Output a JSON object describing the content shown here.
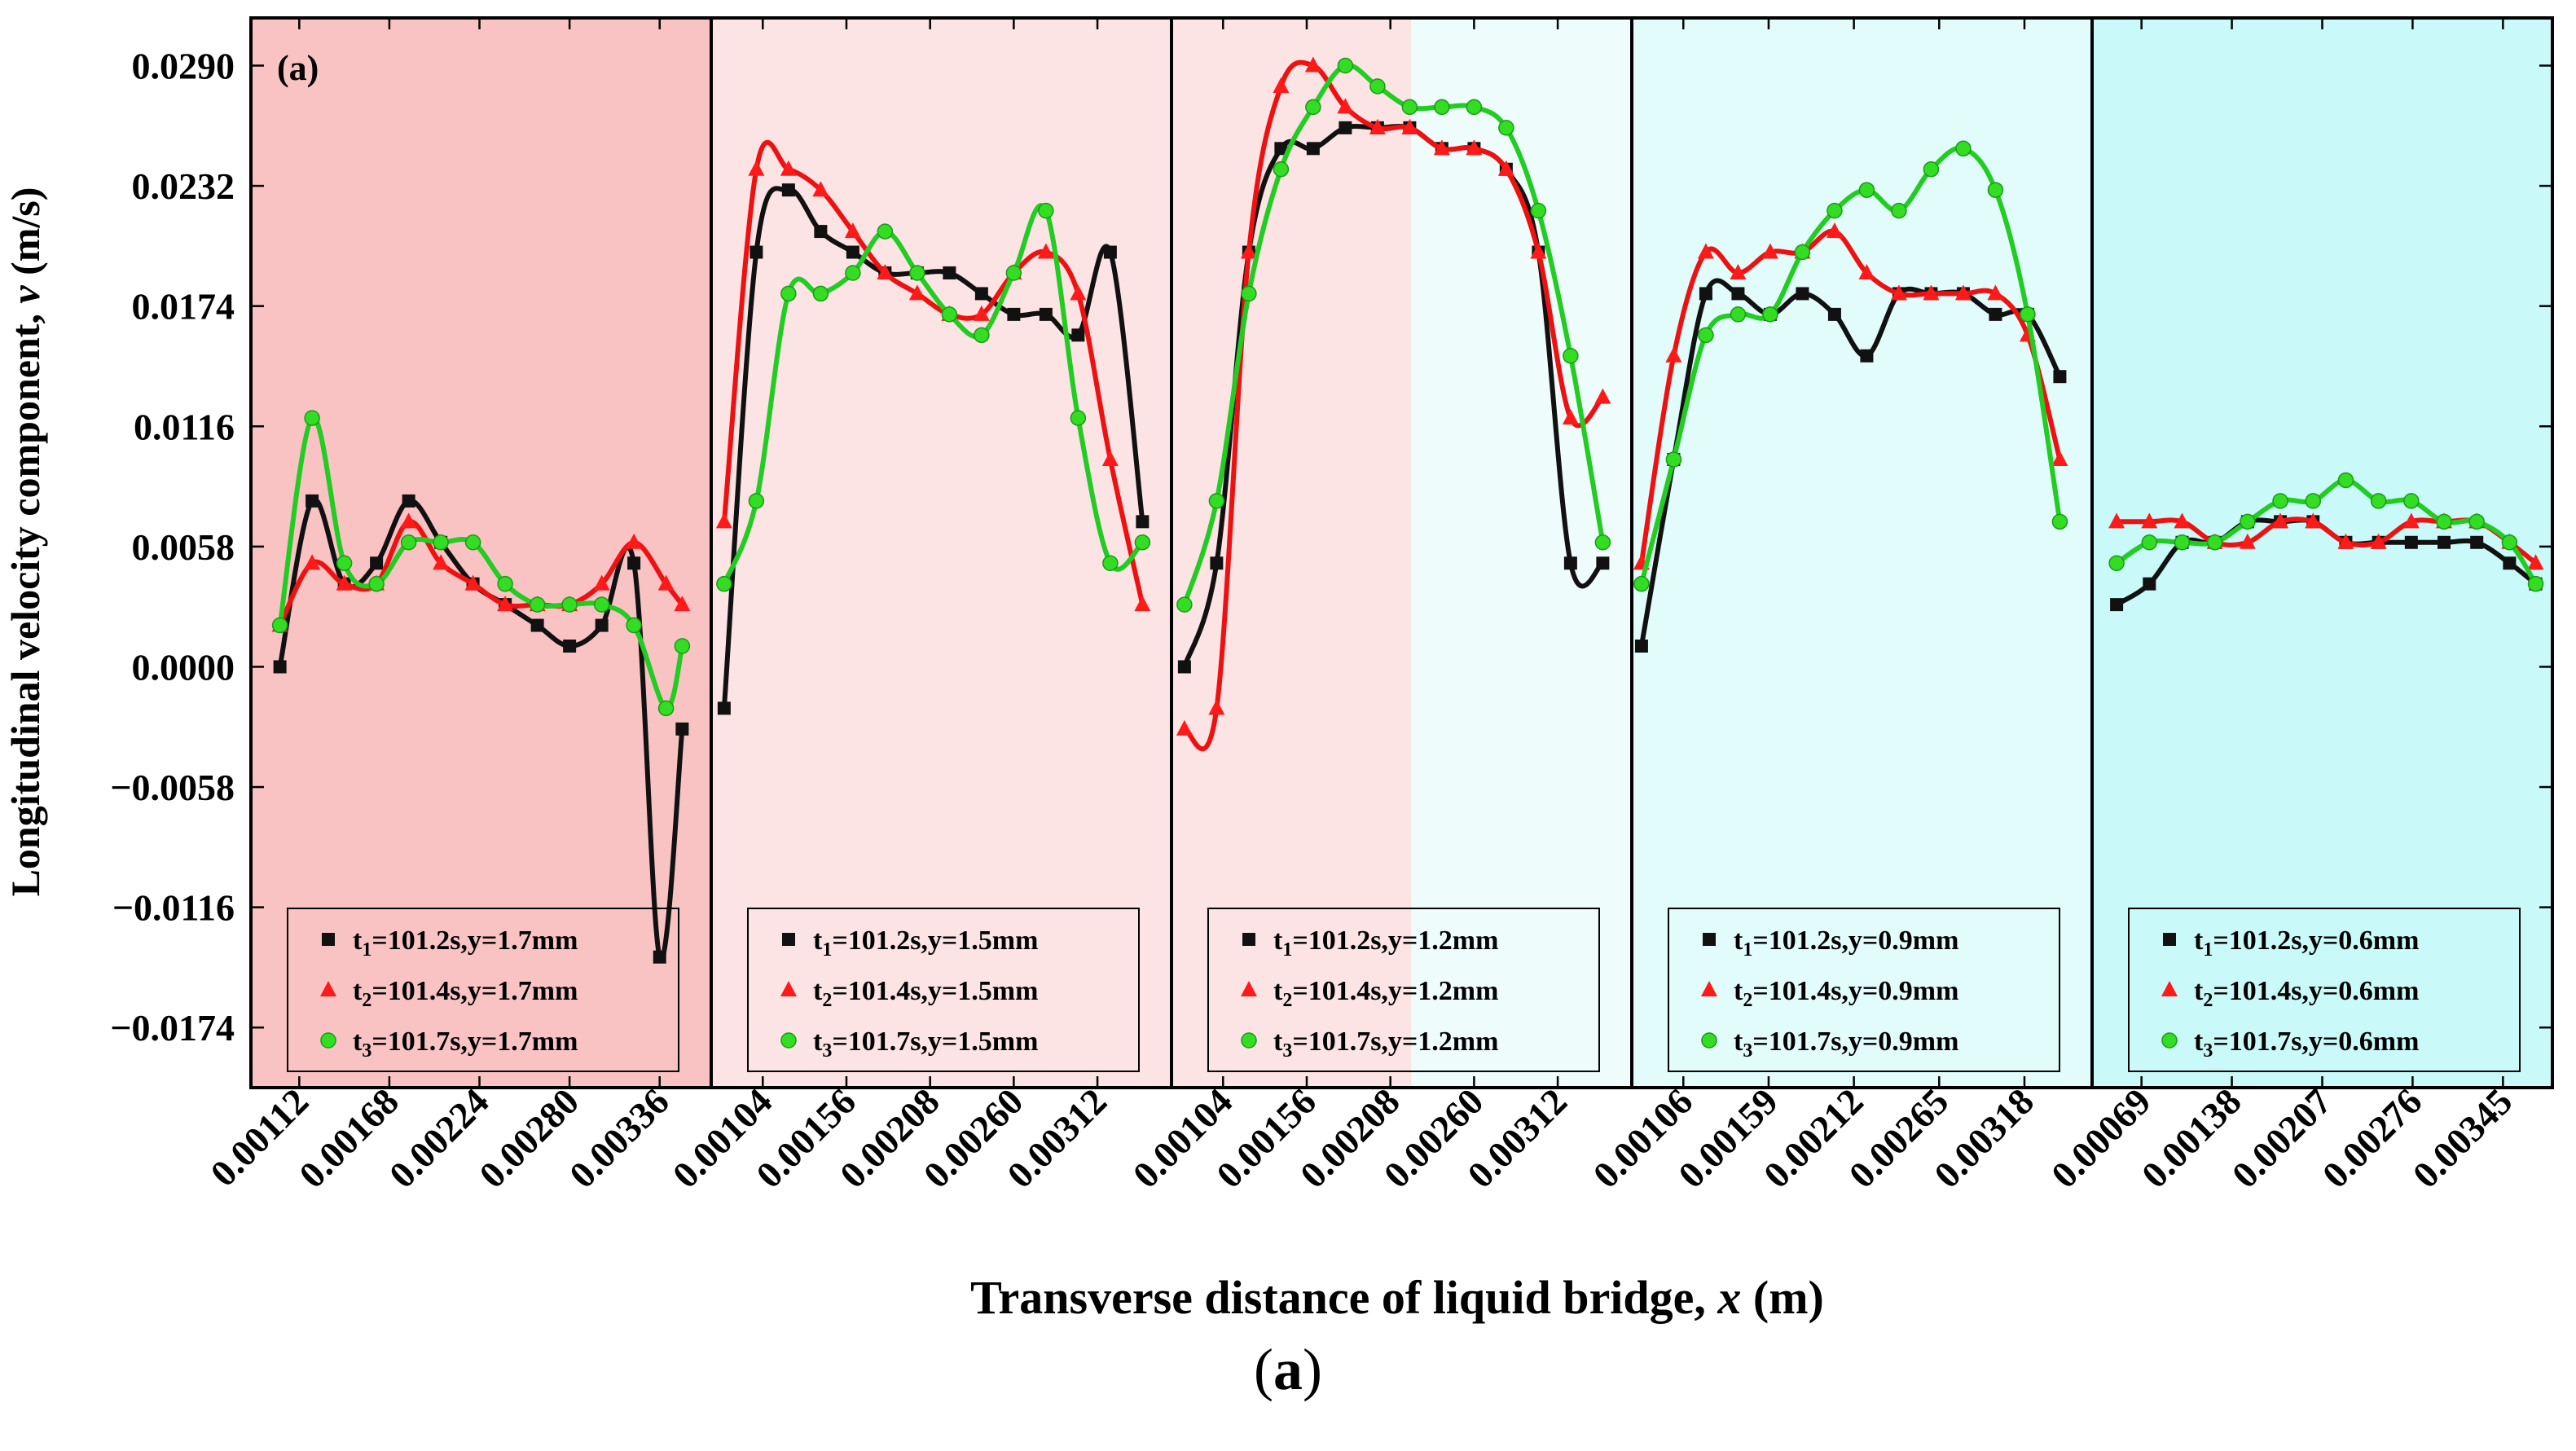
{
  "chart_data": {
    "type": "scatter",
    "panel_label": "(a)",
    "ylabel_text": "Longitudinal velocity component, ",
    "ylabel_var": "v",
    "ylabel_unit": " (m/s)",
    "xlabel_text": "Transverse distance of liquid bridge, ",
    "xlabel_var": "x",
    "xlabel_unit": " (m)",
    "ylim": [
      -0.0203,
      0.0313
    ],
    "yticks": [
      "0.0290",
      "0.0232",
      "0.0174",
      "0.0116",
      "0.0058",
      "0.0000",
      "−0.0058",
      "−0.0116",
      "−0.0174"
    ],
    "ytick_values": [
      0.029,
      0.0232,
      0.0174,
      0.0116,
      0.0058,
      0.0,
      -0.0058,
      -0.0116,
      -0.0174
    ],
    "series_colors": [
      "#111111",
      "#ff1a1a",
      "#33dd22"
    ],
    "line_colors": [
      "#111111",
      "#ee1111",
      "#22cc22"
    ],
    "panels": [
      {
        "bg": [
          "#f9c3c3",
          "#f9c3c3"
        ],
        "xlim": [
          0.00085,
          0.00365
        ],
        "xticks": [
          "0.00112",
          "0.00168",
          "0.00224",
          "0.00280",
          "0.00336"
        ],
        "xtick_values": [
          0.00112,
          0.00168,
          0.00224,
          0.0028,
          0.00336
        ],
        "legend": [
          "101.2s,y=1.7mm",
          "101.4s,y=1.7mm",
          "101.7s,y=1.7mm"
        ],
        "series": [
          {
            "name": "t1=101.2s,y=1.7mm",
            "x": [
              0.001,
              0.0012,
              0.0014,
              0.0016,
              0.0018,
              0.002,
              0.0022,
              0.0024,
              0.0026,
              0.0028,
              0.003,
              0.0032,
              0.00336,
              0.0035
            ],
            "y": [
              0.0,
              0.008,
              0.004,
              0.005,
              0.008,
              0.006,
              0.004,
              0.003,
              0.002,
              0.001,
              0.002,
              0.005,
              -0.014,
              -0.003
            ]
          },
          {
            "name": "t2=101.4s,y=1.7mm",
            "x": [
              0.001,
              0.0012,
              0.0014,
              0.0016,
              0.0018,
              0.002,
              0.0022,
              0.0024,
              0.0026,
              0.0028,
              0.003,
              0.0032,
              0.0034,
              0.0035
            ],
            "y": [
              0.002,
              0.005,
              0.004,
              0.004,
              0.007,
              0.005,
              0.004,
              0.003,
              0.003,
              0.003,
              0.004,
              0.006,
              0.004,
              0.003
            ]
          },
          {
            "name": "t3=101.7s,y=1.7mm",
            "x": [
              0.001,
              0.0012,
              0.0014,
              0.0016,
              0.0018,
              0.002,
              0.0022,
              0.0024,
              0.0026,
              0.0028,
              0.003,
              0.0032,
              0.0034,
              0.0035
            ],
            "y": [
              0.002,
              0.012,
              0.005,
              0.004,
              0.006,
              0.006,
              0.006,
              0.004,
              0.003,
              0.003,
              0.003,
              0.002,
              -0.002,
              0.001
            ]
          }
        ]
      },
      {
        "bg": [
          "#fce4e4",
          "#fce4e4"
        ],
        "xlim": [
          0.00075,
          0.00355
        ],
        "xticks": [
          "0.00104",
          "0.00156",
          "0.00208",
          "0.00260",
          "0.00312"
        ],
        "xtick_values": [
          0.00104,
          0.00156,
          0.00208,
          0.0026,
          0.00312
        ],
        "legend": [
          "101.2s,y=1.5mm",
          "101.4s,y=1.5mm",
          "101.7s,y=1.5mm"
        ],
        "series": [
          {
            "name": "t1=101.2s,y=1.5mm",
            "x": [
              0.0008,
              0.001,
              0.0012,
              0.0014,
              0.0016,
              0.0018,
              0.002,
              0.0022,
              0.0024,
              0.0026,
              0.0028,
              0.003,
              0.0032,
              0.0034
            ],
            "y": [
              -0.002,
              0.02,
              0.023,
              0.021,
              0.02,
              0.019,
              0.019,
              0.019,
              0.018,
              0.017,
              0.017,
              0.016,
              0.02,
              0.007
            ]
          },
          {
            "name": "t2=101.4s,y=1.5mm",
            "x": [
              0.0008,
              0.001,
              0.0012,
              0.0014,
              0.0016,
              0.0018,
              0.002,
              0.0022,
              0.0024,
              0.0026,
              0.0028,
              0.003,
              0.0032,
              0.0034
            ],
            "y": [
              0.007,
              0.024,
              0.024,
              0.023,
              0.021,
              0.019,
              0.018,
              0.017,
              0.017,
              0.019,
              0.02,
              0.018,
              0.01,
              0.003
            ]
          },
          {
            "name": "t3=101.7s,y=1.5mm",
            "x": [
              0.0008,
              0.001,
              0.0012,
              0.0014,
              0.0016,
              0.0018,
              0.002,
              0.0022,
              0.0024,
              0.0026,
              0.0028,
              0.003,
              0.0032,
              0.0034
            ],
            "y": [
              0.004,
              0.008,
              0.018,
              0.018,
              0.019,
              0.021,
              0.019,
              0.017,
              0.016,
              0.019,
              0.022,
              0.012,
              0.005,
              0.006
            ]
          }
        ]
      },
      {
        "bg": [
          "#fce4e4",
          "#eefcfc"
        ],
        "split": 0.00221,
        "xlim": [
          0.00075,
          0.00355
        ],
        "xticks": [
          "0.00104",
          "0.00156",
          "0.00208",
          "0.00260",
          "0.00312"
        ],
        "xtick_values": [
          0.00104,
          0.00156,
          0.00208,
          0.0026,
          0.00312
        ],
        "legend": [
          "101.2s,y=1.2mm",
          "101.4s,y=1.2mm",
          "101.7s,y=1.2mm"
        ],
        "series": [
          {
            "name": "t1=101.2s,y=1.2mm",
            "x": [
              0.0008,
              0.001,
              0.0012,
              0.0014,
              0.0016,
              0.0018,
              0.002,
              0.0022,
              0.0024,
              0.0026,
              0.0028,
              0.003,
              0.0032,
              0.0034
            ],
            "y": [
              0.0,
              0.005,
              0.02,
              0.025,
              0.025,
              0.026,
              0.026,
              0.026,
              0.025,
              0.025,
              0.024,
              0.02,
              0.005,
              0.005
            ]
          },
          {
            "name": "t2=101.4s,y=1.2mm",
            "x": [
              0.0008,
              0.001,
              0.0012,
              0.0014,
              0.0016,
              0.0018,
              0.002,
              0.0022,
              0.0024,
              0.0026,
              0.0028,
              0.003,
              0.0032,
              0.0034
            ],
            "y": [
              -0.003,
              -0.002,
              0.02,
              0.028,
              0.029,
              0.027,
              0.026,
              0.026,
              0.025,
              0.025,
              0.024,
              0.02,
              0.012,
              0.013
            ]
          },
          {
            "name": "t3=101.7s,y=1.2mm",
            "x": [
              0.0008,
              0.001,
              0.0012,
              0.0014,
              0.0016,
              0.0018,
              0.002,
              0.0022,
              0.0024,
              0.0026,
              0.0028,
              0.003,
              0.0032,
              0.0034
            ],
            "y": [
              0.003,
              0.008,
              0.018,
              0.024,
              0.027,
              0.029,
              0.028,
              0.027,
              0.027,
              0.027,
              0.026,
              0.022,
              0.015,
              0.006
            ]
          }
        ]
      },
      {
        "bg": [
          "#e2fcfc",
          "#e2fcfc"
        ],
        "xlim": [
          0.00077,
          0.00357
        ],
        "xticks": [
          "0.00106",
          "0.00159",
          "0.00212",
          "0.00265",
          "0.00318"
        ],
        "xtick_values": [
          0.00106,
          0.00159,
          0.00212,
          0.00265,
          0.00318
        ],
        "legend": [
          "101.2s,y=0.9mm",
          "101.4s,y=0.9mm",
          "101.7s,y=0.9mm"
        ],
        "series": [
          {
            "name": "t1=101.2s,y=0.9mm",
            "x": [
              0.0008,
              0.001,
              0.0012,
              0.0014,
              0.0016,
              0.0018,
              0.002,
              0.0022,
              0.0024,
              0.0026,
              0.0028,
              0.003,
              0.0032,
              0.0034
            ],
            "y": [
              0.001,
              0.01,
              0.018,
              0.018,
              0.017,
              0.018,
              0.017,
              0.015,
              0.018,
              0.018,
              0.018,
              0.017,
              0.017,
              0.014
            ]
          },
          {
            "name": "t2=101.4s,y=0.9mm",
            "x": [
              0.0008,
              0.001,
              0.0012,
              0.0014,
              0.0016,
              0.0018,
              0.002,
              0.0022,
              0.0024,
              0.0026,
              0.0028,
              0.003,
              0.0032,
              0.0034
            ],
            "y": [
              0.005,
              0.015,
              0.02,
              0.019,
              0.02,
              0.02,
              0.021,
              0.019,
              0.018,
              0.018,
              0.018,
              0.018,
              0.016,
              0.01
            ]
          },
          {
            "name": "t3=101.7s,y=0.9mm",
            "x": [
              0.0008,
              0.001,
              0.0012,
              0.0014,
              0.0016,
              0.0018,
              0.002,
              0.0022,
              0.0024,
              0.0026,
              0.0028,
              0.003,
              0.0032,
              0.0034
            ],
            "y": [
              0.004,
              0.01,
              0.016,
              0.017,
              0.017,
              0.02,
              0.022,
              0.023,
              0.022,
              0.024,
              0.025,
              0.023,
              0.017,
              0.007
            ]
          }
        ]
      },
      {
        "bg": [
          "#c9f9f9",
          "#c9f9f9"
        ],
        "xlim": [
          0.00035,
          0.00379
        ],
        "xticks": [
          "0.00069",
          "0.00138",
          "0.00207",
          "0.00276",
          "0.00345"
        ],
        "xtick_values": [
          0.00069,
          0.00138,
          0.00207,
          0.00276,
          0.00345
        ],
        "legend": [
          "101.2s,y=0.6mm",
          "101.4s,y=0.6mm",
          "101.7s,y=0.6mm"
        ],
        "series": [
          {
            "name": "t1=101.2s,y=0.6mm",
            "x": [
              0.0005,
              0.00075,
              0.001,
              0.00125,
              0.0015,
              0.00175,
              0.002,
              0.00225,
              0.0025,
              0.00275,
              0.003,
              0.00325,
              0.0035,
              0.0037
            ],
            "y": [
              0.003,
              0.004,
              0.006,
              0.006,
              0.007,
              0.007,
              0.007,
              0.006,
              0.006,
              0.006,
              0.006,
              0.006,
              0.005,
              0.004
            ]
          },
          {
            "name": "t2=101.4s,y=0.6mm",
            "x": [
              0.0005,
              0.00075,
              0.001,
              0.00125,
              0.0015,
              0.00175,
              0.002,
              0.00225,
              0.0025,
              0.00275,
              0.003,
              0.00325,
              0.0035,
              0.0037
            ],
            "y": [
              0.007,
              0.007,
              0.007,
              0.006,
              0.006,
              0.007,
              0.007,
              0.006,
              0.006,
              0.007,
              0.007,
              0.007,
              0.006,
              0.005
            ]
          },
          {
            "name": "t3=101.7s,y=0.6mm",
            "x": [
              0.0005,
              0.00075,
              0.001,
              0.00125,
              0.0015,
              0.00175,
              0.002,
              0.00225,
              0.0025,
              0.00275,
              0.003,
              0.00325,
              0.0035,
              0.0037
            ],
            "y": [
              0.005,
              0.006,
              0.006,
              0.006,
              0.007,
              0.008,
              0.008,
              0.009,
              0.008,
              0.008,
              0.007,
              0.007,
              0.006,
              0.004
            ]
          }
        ]
      }
    ]
  },
  "caption": {
    "open": "(",
    "letter": "a",
    "close": ")"
  }
}
